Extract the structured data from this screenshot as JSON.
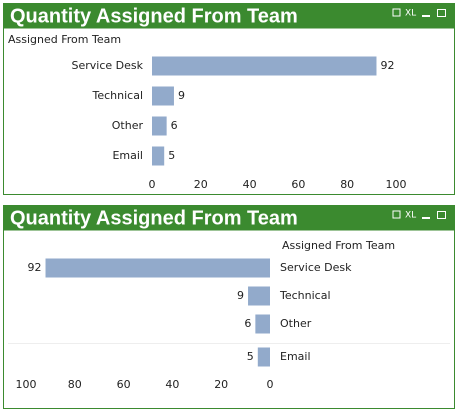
{
  "chart_data": [
    {
      "type": "bar",
      "title": "Quantity Assigned From Team",
      "export_label": "XL",
      "category_label": "Assigned From Team",
      "categories": [
        "Service Desk",
        "Technical",
        "Other",
        "Email"
      ],
      "values": [
        92,
        9,
        6,
        5
      ],
      "color": "#92aacb",
      "xlim": [
        0,
        100
      ],
      "xticks": [
        0,
        20,
        40,
        60,
        80,
        100
      ],
      "x_reversed": false
    },
    {
      "type": "bar",
      "title": "Quantity Assigned From Team",
      "export_label": "XL",
      "category_label": "Assigned From Team",
      "categories": [
        "Service Desk",
        "Technical",
        "Other",
        "Email"
      ],
      "values": [
        92,
        9,
        6,
        5
      ],
      "color": "#92aacb",
      "xlim": [
        0,
        100
      ],
      "xticks": [
        0,
        20,
        40,
        60,
        80,
        100
      ],
      "x_reversed": true
    }
  ]
}
